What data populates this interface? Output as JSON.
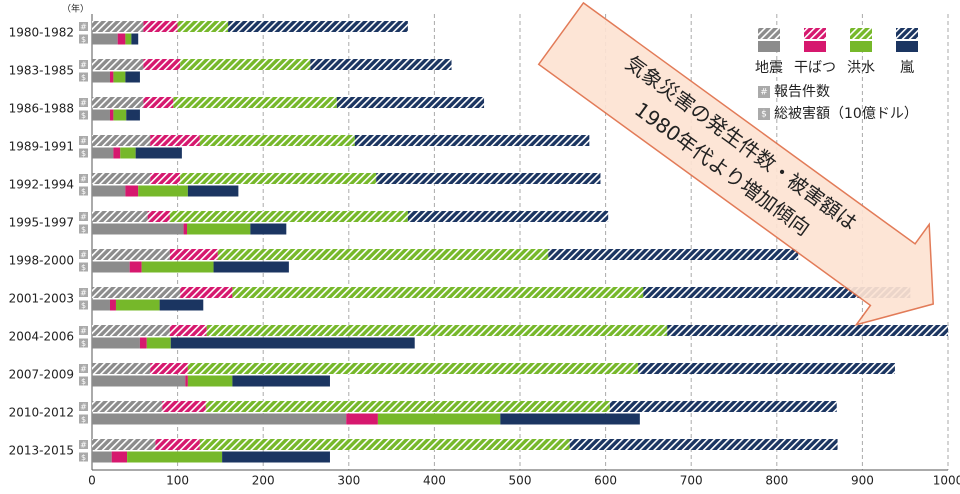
{
  "chart_data": {
    "type": "bar",
    "orientation": "horizontal",
    "stacked": true,
    "axis_label": "（年）",
    "categories": [
      "1980-1982",
      "1983-1985",
      "1986-1988",
      "1989-1991",
      "1992-1994",
      "1995-1997",
      "1998-2000",
      "2001-2003",
      "2004-2006",
      "2007-2009",
      "2010-2012",
      "2013-2015"
    ],
    "measures": [
      {
        "name": "報告件数",
        "icon": "#",
        "hatched": true
      },
      {
        "name": "総被害額（10億ドル）",
        "icon": "$",
        "hatched": false
      }
    ],
    "series": [
      {
        "name": "地震",
        "color": "#8c8c8c",
        "counts": [
          60,
          60,
          60,
          68,
          68,
          65,
          91,
          103,
          91,
          68,
          82,
          74
        ],
        "damages": [
          30,
          21,
          21,
          25,
          39,
          107,
          44,
          21,
          56,
          109,
          297,
          23
        ]
      },
      {
        "name": "干ばつ",
        "color": "#d6186e",
        "counts": [
          40,
          43,
          35,
          58,
          35,
          26,
          56,
          61,
          43,
          44,
          51,
          52
        ],
        "damages": [
          9,
          4,
          4,
          8,
          15,
          4,
          14,
          7,
          8,
          3,
          37,
          18
        ]
      },
      {
        "name": "洪水",
        "color": "#76b82a",
        "counts": [
          59,
          152,
          191,
          181,
          229,
          278,
          386,
          480,
          538,
          526,
          472,
          432
        ],
        "damages": [
          7,
          14,
          15,
          18,
          58,
          74,
          84,
          51,
          28,
          52,
          143,
          111
        ]
      },
      {
        "name": "嵐",
        "color": "#1b3561",
        "counts": [
          210,
          165,
          172,
          274,
          262,
          234,
          292,
          312,
          328,
          300,
          265,
          313
        ],
        "damages": [
          8,
          17,
          16,
          54,
          59,
          42,
          88,
          51,
          285,
          114,
          163,
          126
        ]
      }
    ],
    "xlim": [
      0,
      1000
    ],
    "xticks": [
      0,
      100,
      200,
      300,
      400,
      500,
      600,
      700,
      800,
      900,
      1000
    ],
    "grid": true,
    "annotation": [
      "気象災害の発生件数・被害額は",
      "1980年代より増加傾向"
    ]
  }
}
